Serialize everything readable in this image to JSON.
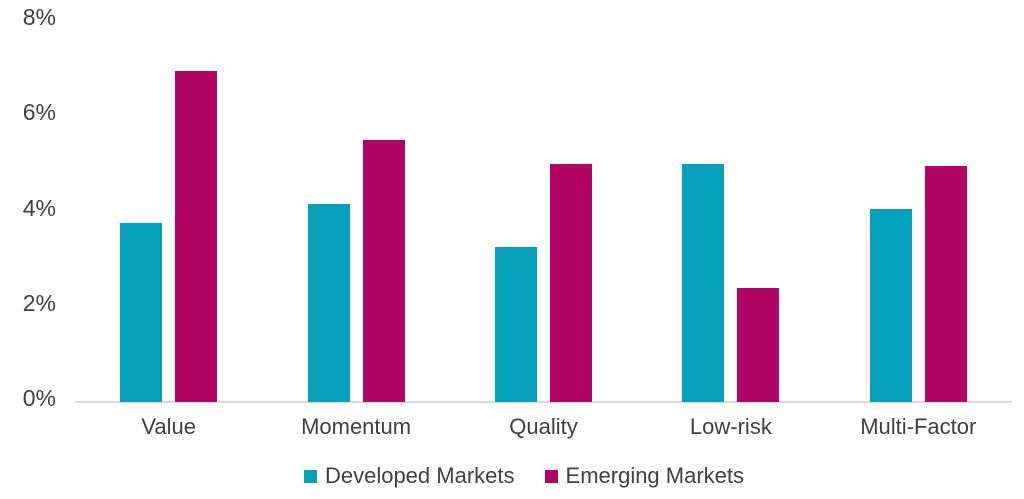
{
  "chart_data": {
    "type": "bar",
    "title": "",
    "xlabel": "",
    "ylabel": "",
    "categories": [
      "Value",
      "Momentum",
      "Quality",
      "Low-risk",
      "Multi-Factor"
    ],
    "series": [
      {
        "name": "Developed Markets",
        "color": "#05A0BA",
        "values": [
          3.75,
          4.15,
          3.25,
          5.0,
          4.05
        ]
      },
      {
        "name": "Emerging Markets",
        "color": "#B10467",
        "values": [
          6.95,
          5.5,
          5.0,
          2.4,
          4.95
        ]
      }
    ],
    "ylim": [
      0,
      8
    ],
    "yticks": [
      {
        "label": "0%",
        "value": 0
      },
      {
        "label": "2%",
        "value": 2
      },
      {
        "label": "4%",
        "value": 4
      },
      {
        "label": "6%",
        "value": 6
      },
      {
        "label": "8%",
        "value": 8
      }
    ],
    "grid": false,
    "legend_position": "bottom",
    "axis_line_color": "#d9d9d9",
    "text_color": "#404040",
    "background_color": "#ffffff"
  }
}
